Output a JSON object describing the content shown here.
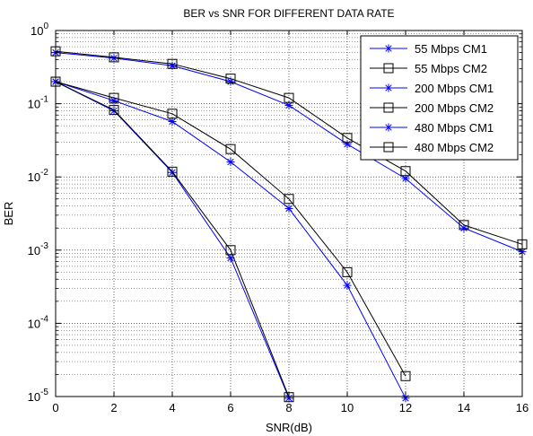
{
  "chart_data": {
    "type": "line",
    "title": "BER vs SNR FOR DIFFERENT DATA RATE",
    "xlabel": "SNR(dB)",
    "ylabel": "BER",
    "xlim": [
      0,
      16
    ],
    "ylim": [
      1e-05,
      1
    ],
    "yscale": "log",
    "grid": true,
    "legend_position": "top-right",
    "x_ticks": [
      0,
      2,
      4,
      6,
      8,
      10,
      12,
      14,
      16
    ],
    "y_ticks": [
      {
        "value": 1,
        "mantissa": "10",
        "exp": "0"
      },
      {
        "value": 0.1,
        "mantissa": "10",
        "exp": "-1"
      },
      {
        "value": 0.01,
        "mantissa": "10",
        "exp": "-2"
      },
      {
        "value": 0.001,
        "mantissa": "10",
        "exp": "-3"
      },
      {
        "value": 0.0001,
        "mantissa": "10",
        "exp": "-4"
      },
      {
        "value": 1e-05,
        "mantissa": "10",
        "exp": "-5"
      }
    ],
    "series": [
      {
        "name": "55 Mbps CM1",
        "color": "#0000ff",
        "marker": "star",
        "x": [
          0,
          2,
          4,
          6,
          8,
          10,
          12,
          14,
          16
        ],
        "y": [
          0.5,
          0.42,
          0.33,
          0.2,
          0.095,
          0.028,
          0.0095,
          0.002,
          0.00095
        ]
      },
      {
        "name": "55 Mbps CM2",
        "color": "#000000",
        "marker": "square",
        "x": [
          0,
          2,
          4,
          6,
          8,
          10,
          12,
          14,
          16
        ],
        "y": [
          0.52,
          0.43,
          0.35,
          0.22,
          0.12,
          0.034,
          0.012,
          0.0022,
          0.0012
        ]
      },
      {
        "name": "200 Mbps CM1",
        "color": "#0000ff",
        "marker": "star",
        "x": [
          0,
          2,
          4,
          6,
          8,
          10,
          12
        ],
        "y": [
          0.2,
          0.11,
          0.057,
          0.016,
          0.0037,
          0.00033,
          9.5e-06
        ]
      },
      {
        "name": "200 Mbps CM2",
        "color": "#000000",
        "marker": "square",
        "x": [
          0,
          2,
          4,
          6,
          8,
          10,
          12
        ],
        "y": [
          0.2,
          0.12,
          0.073,
          0.024,
          0.005,
          0.0005,
          1.9e-05
        ]
      },
      {
        "name": "480 Mbps CM1",
        "color": "#0000ff",
        "marker": "star",
        "x": [
          0,
          2,
          4,
          6,
          8
        ],
        "y": [
          0.2,
          0.08,
          0.0115,
          0.00078,
          9.5e-06
        ]
      },
      {
        "name": "480 Mbps CM2",
        "color": "#000000",
        "marker": "square",
        "x": [
          0,
          2,
          4,
          6,
          8
        ],
        "y": [
          0.2,
          0.082,
          0.0118,
          0.001,
          9.8e-06
        ]
      }
    ]
  }
}
